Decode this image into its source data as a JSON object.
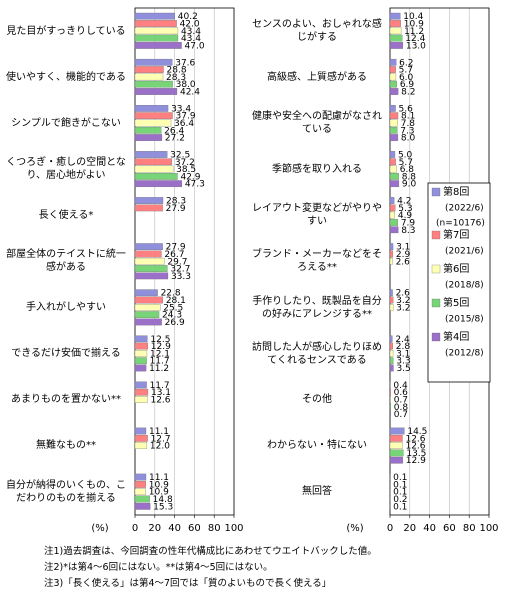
{
  "chart_data": [
    {
      "type": "hbar",
      "xlabel": "(%)",
      "xlim": [
        0,
        100
      ],
      "xticks": [
        0,
        20,
        40,
        60,
        80,
        100
      ],
      "grid": true,
      "categories": [
        "見た目がすっきりしている",
        "使いやすく、機能的である",
        "シンプルで飽きがこない",
        "くつろぎ・癒しの空間となり、居心地がよい",
        "長く使える*",
        "部屋全体のテイストに統一感がある",
        "手入れがしやすい",
        "できるだけ安価で揃える",
        "あまりものを置かない**",
        "無難なもの**",
        "自分が納得のいくもの、こだわりのものを揃える"
      ],
      "series": [
        {
          "color": "#8f8fdc",
          "values": [
            40.2,
            37.6,
            33.4,
            32.5,
            28.3,
            27.9,
            22.8,
            12.5,
            11.7,
            11.1,
            11.1
          ],
          "value_labels": [
            "40.2",
            "37.6",
            "33.4",
            "32.5",
            "28.3",
            "27.9",
            "22.8",
            "12.5",
            "11.7",
            "11.1",
            "11.1"
          ]
        },
        {
          "color": "#ff8080",
          "values": [
            42.0,
            28.8,
            37.9,
            37.2,
            27.9,
            26.7,
            28.1,
            12.9,
            13.1,
            12.7,
            10.9
          ],
          "value_labels": [
            "42.0",
            "28.8",
            "37.9",
            "37.2",
            "27.9",
            "26.7",
            "28.1",
            "12.9",
            "13.1",
            "12.7",
            "10.9"
          ]
        },
        {
          "color": "#ffffb3",
          "values": [
            43.4,
            28.3,
            36.4,
            38.5,
            null,
            29.7,
            25.5,
            12.1,
            12.6,
            12.0,
            10.9
          ],
          "value_labels": [
            "43.4",
            "28.3",
            "36.4",
            "38.5",
            null,
            "29.7",
            "25.5",
            "12.1",
            "12.6",
            "12.0",
            "10.9"
          ]
        },
        {
          "color": "#77d477",
          "values": [
            43.4,
            38.0,
            26.4,
            42.9,
            null,
            32.7,
            24.3,
            11.7,
            null,
            null,
            14.8
          ],
          "value_labels": [
            "43.4",
            "38.0",
            "26.4",
            "42.9",
            null,
            "32.7",
            "24.3",
            "11.7",
            null,
            null,
            "14.8"
          ]
        },
        {
          "color": "#9a70c8",
          "values": [
            47.0,
            42.4,
            27.2,
            47.3,
            null,
            33.3,
            26.9,
            11.2,
            null,
            null,
            15.3
          ],
          "value_labels": [
            "47.0",
            "42.4",
            "27.2",
            "47.3",
            null,
            "33.3",
            "26.9",
            "11.2",
            null,
            null,
            "15.3"
          ]
        }
      ]
    },
    {
      "type": "hbar",
      "xlabel": "(%)",
      "xlim": [
        0,
        100
      ],
      "xticks": [
        0,
        20,
        40,
        60,
        80,
        100
      ],
      "grid": true,
      "legend": "right",
      "categories": [
        "センスのよい、おしゃれな感じがする",
        "高級感、上質感がある",
        "健康や安全への配慮がなされている",
        "季節感を取り入れる",
        "レイアウト変更などがやりやすい",
        "ブランド・メーカーなどをそろえる**",
        "手作りしたり、既製品を自分の好みにアレンジする**",
        "訪問した人が感心したりほめてくれるセンスである",
        "その他",
        "わからない・特にない",
        "無回答"
      ],
      "series": [
        {
          "name": "第8回",
          "period": "(2022/6)",
          "n": "(n=10176)",
          "color": "#8f8fdc",
          "values": [
            10.4,
            6.2,
            5.6,
            5.0,
            4.2,
            3.1,
            2.6,
            2.4,
            0.4,
            14.5,
            0.1
          ],
          "value_labels": [
            "10.4",
            "6.2",
            "5.6",
            "5.0",
            "4.2",
            "3.1",
            "2.6",
            "2.4",
            "0.4",
            "14.5",
            "0.1"
          ]
        },
        {
          "name": "第7回",
          "period": "(2021/6)",
          "color": "#ff8080",
          "values": [
            10.9,
            5.7,
            8.1,
            5.7,
            5.3,
            2.9,
            3.2,
            2.8,
            0.6,
            12.6,
            0.1
          ],
          "value_labels": [
            "10.9",
            "5.7",
            "8.1",
            "5.7",
            "5.3",
            "2.9",
            "3.2",
            "2.8",
            "0.6",
            "12.6",
            "0.1"
          ]
        },
        {
          "name": "第6回",
          "period": "(2018/8)",
          "color": "#ffffb3",
          "values": [
            11.2,
            6.0,
            7.8,
            6.8,
            4.9,
            2.6,
            3.2,
            3.1,
            0.7,
            12.6,
            0.1
          ],
          "value_labels": [
            "11.2",
            "6.0",
            "7.8",
            "6.8",
            "4.9",
            "2.6",
            "3.2",
            "3.1",
            "0.7",
            "12.6",
            "0.1"
          ]
        },
        {
          "name": "第5回",
          "period": "(2015/8)",
          "color": "#77d477",
          "values": [
            12.4,
            6.9,
            7.3,
            8.8,
            7.9,
            null,
            null,
            3.3,
            0.8,
            13.5,
            0.2
          ],
          "value_labels": [
            "12.4",
            "6.9",
            "7.3",
            "8.8",
            "7.9",
            null,
            null,
            "3.3",
            "0.8",
            "13.5",
            "0.2"
          ]
        },
        {
          "name": "第4回",
          "period": "(2012/8)",
          "color": "#9a70c8",
          "values": [
            13.0,
            8.2,
            8.0,
            9.0,
            8.3,
            null,
            null,
            3.5,
            0.7,
            12.9,
            0.1
          ],
          "value_labels": [
            "13.0",
            "8.2",
            "8.0",
            "9.0",
            "8.3",
            null,
            null,
            "3.5",
            "0.7",
            "12.9",
            "0.1"
          ]
        }
      ]
    }
  ],
  "notes": [
    "注1)過去調査は、今回調査の性年代構成比にあわせてウエイトバックした値。",
    "注2)*は第4～6回にはない。**は第4～5回にはない。",
    "注3)「長く使える」は第4～7回では「質のよいもので長く使える」"
  ]
}
